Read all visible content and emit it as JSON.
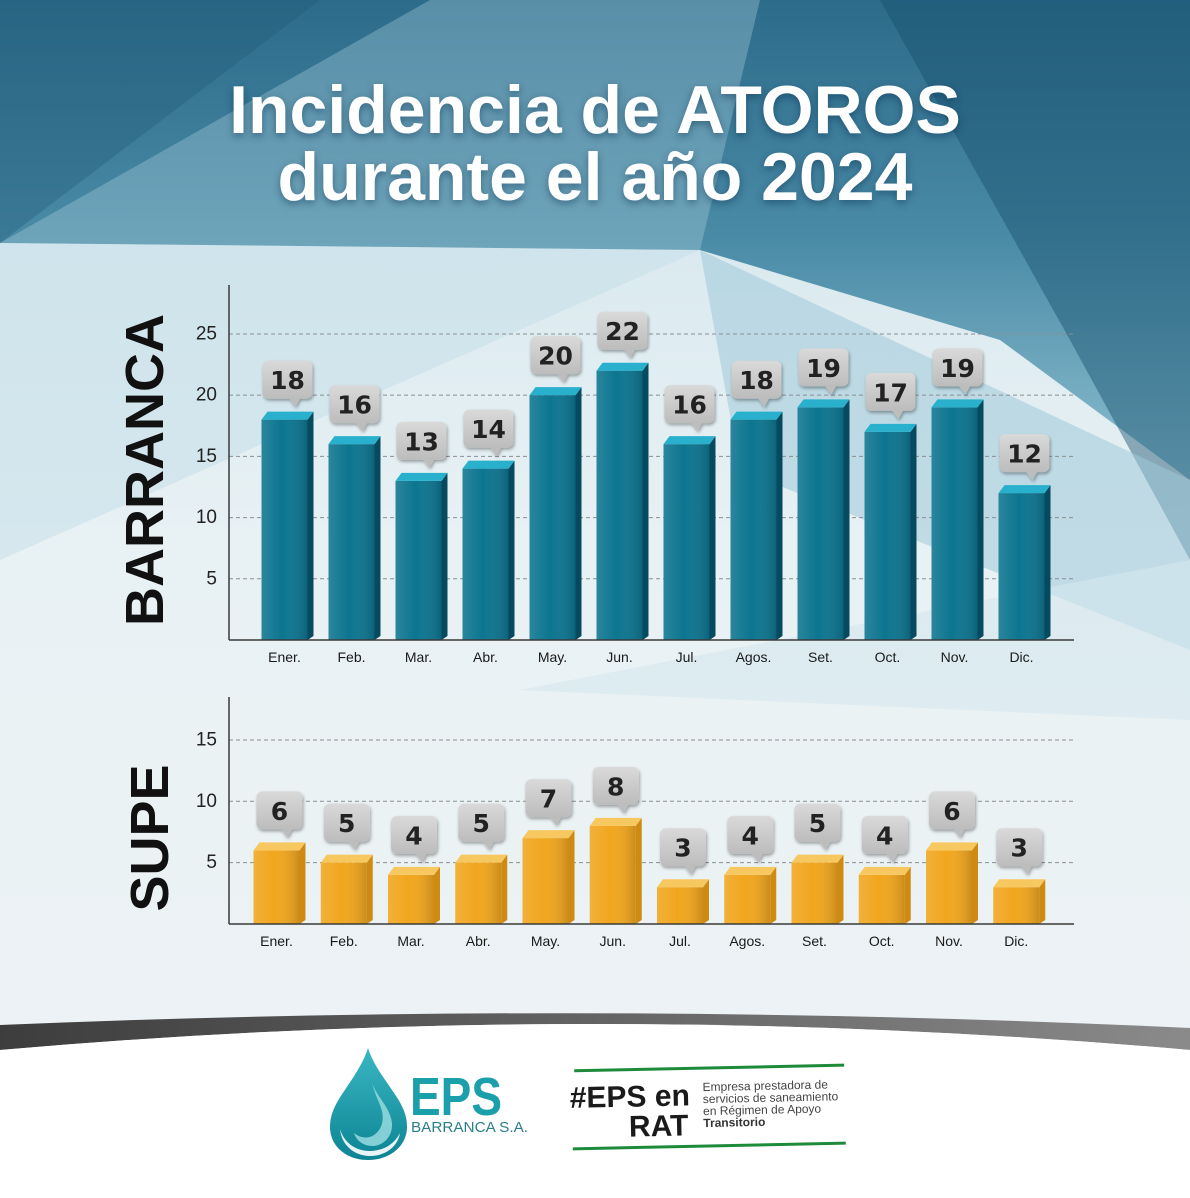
{
  "title": {
    "line1": "Incidencia de ATOROS",
    "line2": "durante el año 2024"
  },
  "chart_data": [
    {
      "type": "bar",
      "title": "BARRANCA",
      "categories": [
        "Ener.",
        "Feb.",
        "Mar.",
        "Abr.",
        "May.",
        "Jun.",
        "Jul.",
        "Agos.",
        "Set.",
        "Oct.",
        "Nov.",
        "Dic."
      ],
      "values": [
        18,
        16,
        13,
        14,
        20,
        22,
        16,
        18,
        19,
        17,
        19,
        12
      ],
      "yticks": [
        5,
        10,
        15,
        20,
        25
      ],
      "ylim": [
        0,
        29
      ],
      "grid": true,
      "colors": {
        "front": "#0d7590",
        "top": "#29b0cc",
        "side": "#064a60"
      }
    },
    {
      "type": "bar",
      "title": "SUPE",
      "categories": [
        "Ener.",
        "Feb.",
        "Mar.",
        "Abr.",
        "May.",
        "Jun.",
        "Jul.",
        "Agos.",
        "Set.",
        "Oct.",
        "Nov.",
        "Dic."
      ],
      "values": [
        6,
        5,
        4,
        5,
        7,
        8,
        3,
        4,
        5,
        4,
        6,
        3
      ],
      "yticks": [
        5,
        10,
        15
      ],
      "ylim": [
        0,
        18.5
      ],
      "grid": true,
      "colors": {
        "front": "#f1a61e",
        "top": "#f8c860",
        "side": "#cf8a12"
      }
    }
  ],
  "logos": {
    "eps": {
      "name": "EPS",
      "subtitle": "BARRANCA S.A.",
      "icon": "water-drop-icon",
      "color": "#1b9fab"
    },
    "rat": {
      "hashtag": "#EPS en",
      "acronym": "RAT",
      "description": [
        "Empresa prestadora de",
        "servicios de saneamiento",
        "en Régimen de Apoyo",
        "Transitorio"
      ],
      "color": "#1e8b3a"
    }
  },
  "colors": {
    "title": "#ffffff",
    "background_top": "#2c6b8a",
    "value_label_box": "#c9c9c9"
  }
}
